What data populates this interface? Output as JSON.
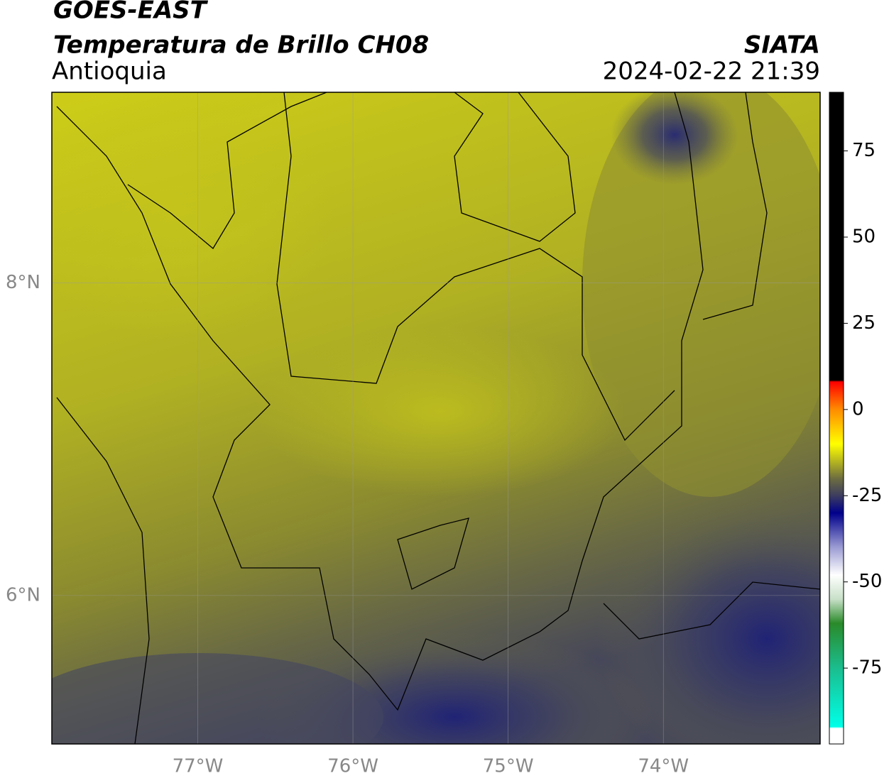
{
  "header": {
    "title": "GOES-EAST",
    "subtitle": "Temperatura de Brillo CH08",
    "region": "Antioquia",
    "source": "SIATA",
    "datetime": "2024-02-22 21:39"
  },
  "map": {
    "xlim": [
      -77.94,
      -72.99
    ],
    "ylim": [
      5.05,
      9.22
    ],
    "xticks": [
      {
        "value": -77,
        "label": "77°W"
      },
      {
        "value": -76,
        "label": "76°W"
      },
      {
        "value": -75,
        "label": "75°W"
      },
      {
        "value": -74,
        "label": "74°W"
      }
    ],
    "yticks": [
      {
        "value": 6,
        "label": "6°N"
      },
      {
        "value": 8,
        "label": "8°N"
      }
    ],
    "grid": true
  },
  "colorbar": {
    "clim": [
      -97,
      92
    ],
    "ticks": [
      75,
      50,
      25,
      0,
      -25,
      -50,
      -75
    ],
    "colors": [
      {
        "value": 92,
        "color": "#000000"
      },
      {
        "value": 8.5,
        "color": "#000000"
      },
      {
        "value": 8,
        "color": "#ff0000"
      },
      {
        "value": 0,
        "color": "#ff8c00"
      },
      {
        "value": -10,
        "color": "#ffff00"
      },
      {
        "value": -20,
        "color": "#6d6d40"
      },
      {
        "value": -25,
        "color": "#3c3c60"
      },
      {
        "value": -30,
        "color": "#00008b"
      },
      {
        "value": -40,
        "color": "#9c9cd4"
      },
      {
        "value": -48,
        "color": "#ffffff"
      },
      {
        "value": -55,
        "color": "#c8e0c8"
      },
      {
        "value": -62,
        "color": "#2a8a2a"
      },
      {
        "value": -75,
        "color": "#1bbd8e"
      },
      {
        "value": -92,
        "color": "#00ffe8"
      },
      {
        "value": -92.5,
        "color": "#ffffff"
      },
      {
        "value": -97,
        "color": "#ffffff"
      }
    ]
  }
}
